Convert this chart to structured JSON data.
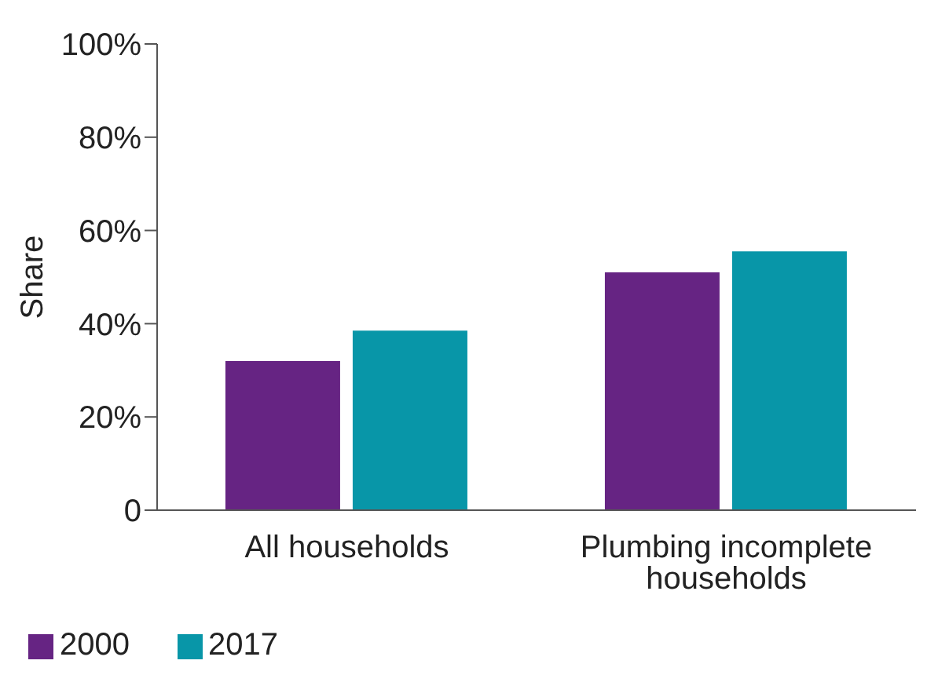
{
  "chart_data": {
    "type": "bar",
    "ylabel": "Share",
    "categories": [
      "All households",
      "Plumbing incomplete households"
    ],
    "series": [
      {
        "name": "2000",
        "color": "#662483",
        "values": [
          32,
          51
        ]
      },
      {
        "name": "2017",
        "color": "#0896a8",
        "values": [
          38.5,
          55.5
        ]
      }
    ],
    "ylim": [
      0,
      100
    ],
    "yticks": [
      {
        "value": 0,
        "label": "0"
      },
      {
        "value": 20,
        "label": "20%"
      },
      {
        "value": 40,
        "label": "40%"
      },
      {
        "value": 60,
        "label": "60%"
      },
      {
        "value": 80,
        "label": "80%"
      },
      {
        "value": 100,
        "label": "100%"
      }
    ],
    "grid": false,
    "legend": "bottom left"
  }
}
